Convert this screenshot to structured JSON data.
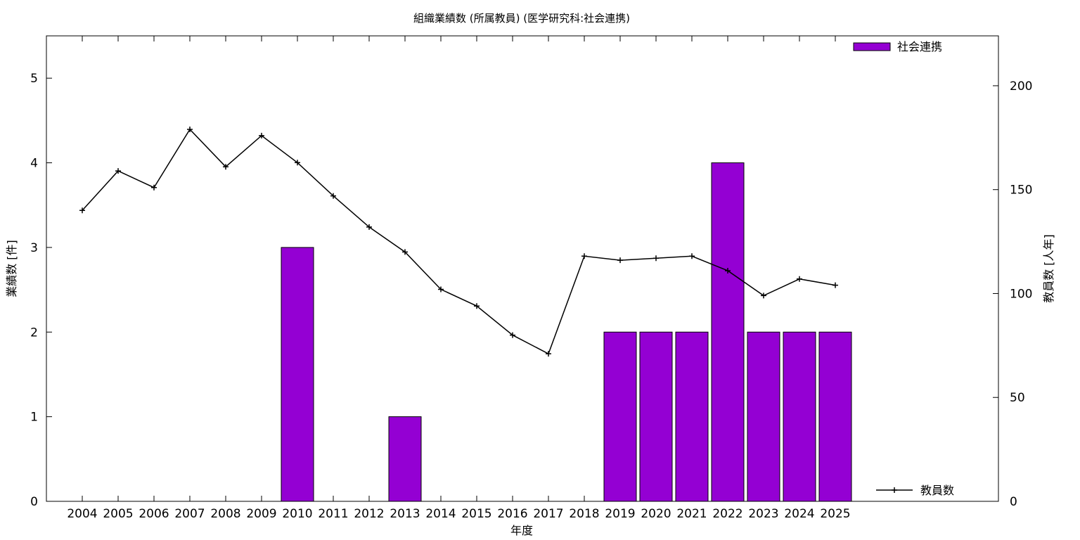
{
  "chart_data": {
    "type": "bar",
    "title": "組織業績数 (所属教員) (医学研究科:社会連携)",
    "xlabel": "年度",
    "ylabel": "業績数 [件]",
    "y2label": "教員数 [人年]",
    "categories": [
      "2004",
      "2005",
      "2006",
      "2007",
      "2008",
      "2009",
      "2010",
      "2011",
      "2012",
      "2013",
      "2014",
      "2015",
      "2016",
      "2017",
      "2018",
      "2019",
      "2020",
      "2021",
      "2022",
      "2023",
      "2024",
      "2025"
    ],
    "ylim": [
      0,
      5.5
    ],
    "yticks": [
      0,
      1,
      2,
      3,
      4,
      5
    ],
    "y2lim": [
      0,
      224
    ],
    "y2ticks": [
      0,
      50,
      100,
      150,
      200
    ],
    "grid": false,
    "series": [
      {
        "name": "社会連携",
        "type": "bar",
        "axis": "left",
        "color": "#9400d3",
        "values": [
          0,
          0,
          0,
          0,
          0,
          0,
          3,
          0,
          0,
          1,
          0,
          0,
          0,
          0,
          0,
          2,
          2,
          2,
          4,
          2,
          2,
          2
        ]
      },
      {
        "name": "教員数",
        "type": "line",
        "axis": "right",
        "color": "#000000",
        "values": [
          140,
          159,
          151,
          179,
          161,
          176,
          163,
          147,
          132,
          120,
          102,
          94,
          80,
          71,
          118,
          116,
          117,
          118,
          111,
          99,
          107,
          104
        ]
      }
    ],
    "legend": {
      "bar_position": "top-right",
      "line_position": "bottom-right"
    }
  }
}
